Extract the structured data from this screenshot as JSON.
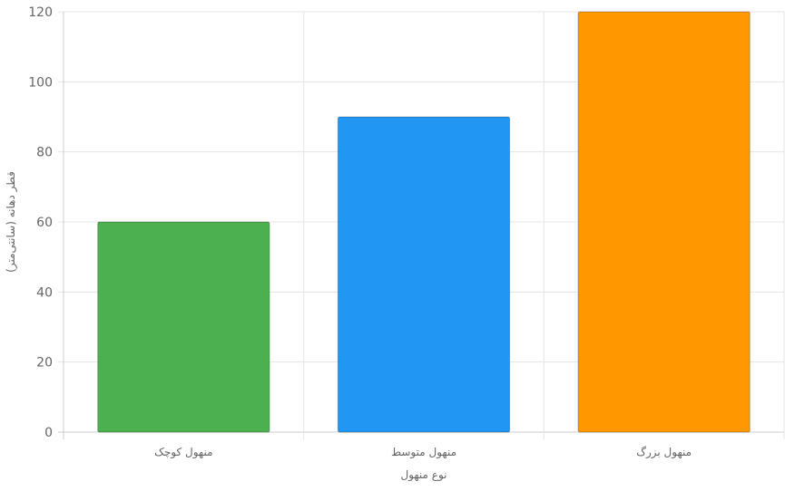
{
  "chart_data": {
    "type": "bar",
    "categories": [
      "منهول کوچک",
      "منهول متوسط",
      "منهول بزرگ"
    ],
    "values": [
      60,
      90,
      120
    ],
    "colors": [
      "#4caf50",
      "#2196f3",
      "#ff9800"
    ],
    "xlabel": "نوع منهول",
    "ylabel": "قطر دهانه (سانتی‌متر)",
    "ylim": [
      0,
      120
    ],
    "yticks": [
      0,
      20,
      40,
      60,
      80,
      100,
      120
    ],
    "grid": true
  }
}
